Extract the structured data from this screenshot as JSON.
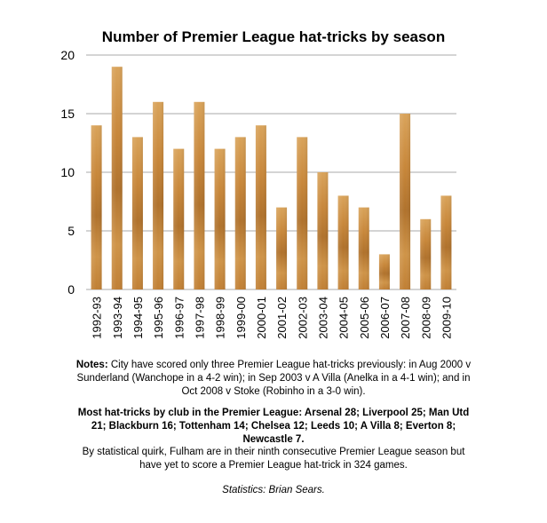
{
  "chart_data": {
    "type": "bar",
    "title": "Number of Premier League hat-tricks by season",
    "xlabel": "",
    "ylabel": "",
    "ylim": [
      0,
      20
    ],
    "yticks": [
      0,
      5,
      10,
      15,
      20
    ],
    "grid": true,
    "categories": [
      "1992-93",
      "1993-94",
      "1994-95",
      "1995-96",
      "1996-97",
      "1997-98",
      "1998-99",
      "1999-00",
      "2000-01",
      "2001-02",
      "2002-03",
      "2003-04",
      "2004-05",
      "2005-06",
      "2006-07",
      "2007-08",
      "2008-09",
      "2009-10"
    ],
    "values": [
      14,
      19,
      13,
      16,
      12,
      16,
      12,
      13,
      14,
      7,
      13,
      10,
      8,
      7,
      3,
      15,
      6,
      8
    ],
    "bar_color": "#c98a3a"
  },
  "notes": {
    "label": "Notes:",
    "text": " City have scored only three Premier League hat-tricks previously: in Aug 2000 v Sunderland (Wanchope in a 4-2 win); in Sep 2003 v A Villa (Anelka in a 4-1 win); and in Oct 2008 v Stoke (Robinho in a 3-0 win)."
  },
  "clubs_text": "Most hat-tricks by club in the Premier League: Arsenal 28; Liverpool 25; Man Utd 21; Blackburn 16; Tottenham 14; Chelsea 12; Leeds 10; A Villa 8; Everton 8; Newcastle 7.",
  "quirk_text": "By statistical quirk, Fulham are in their ninth consecutive Premier League season but have yet to score a Premier League hat-trick in 324 games.",
  "credit_text": "Statistics: Brian Sears."
}
